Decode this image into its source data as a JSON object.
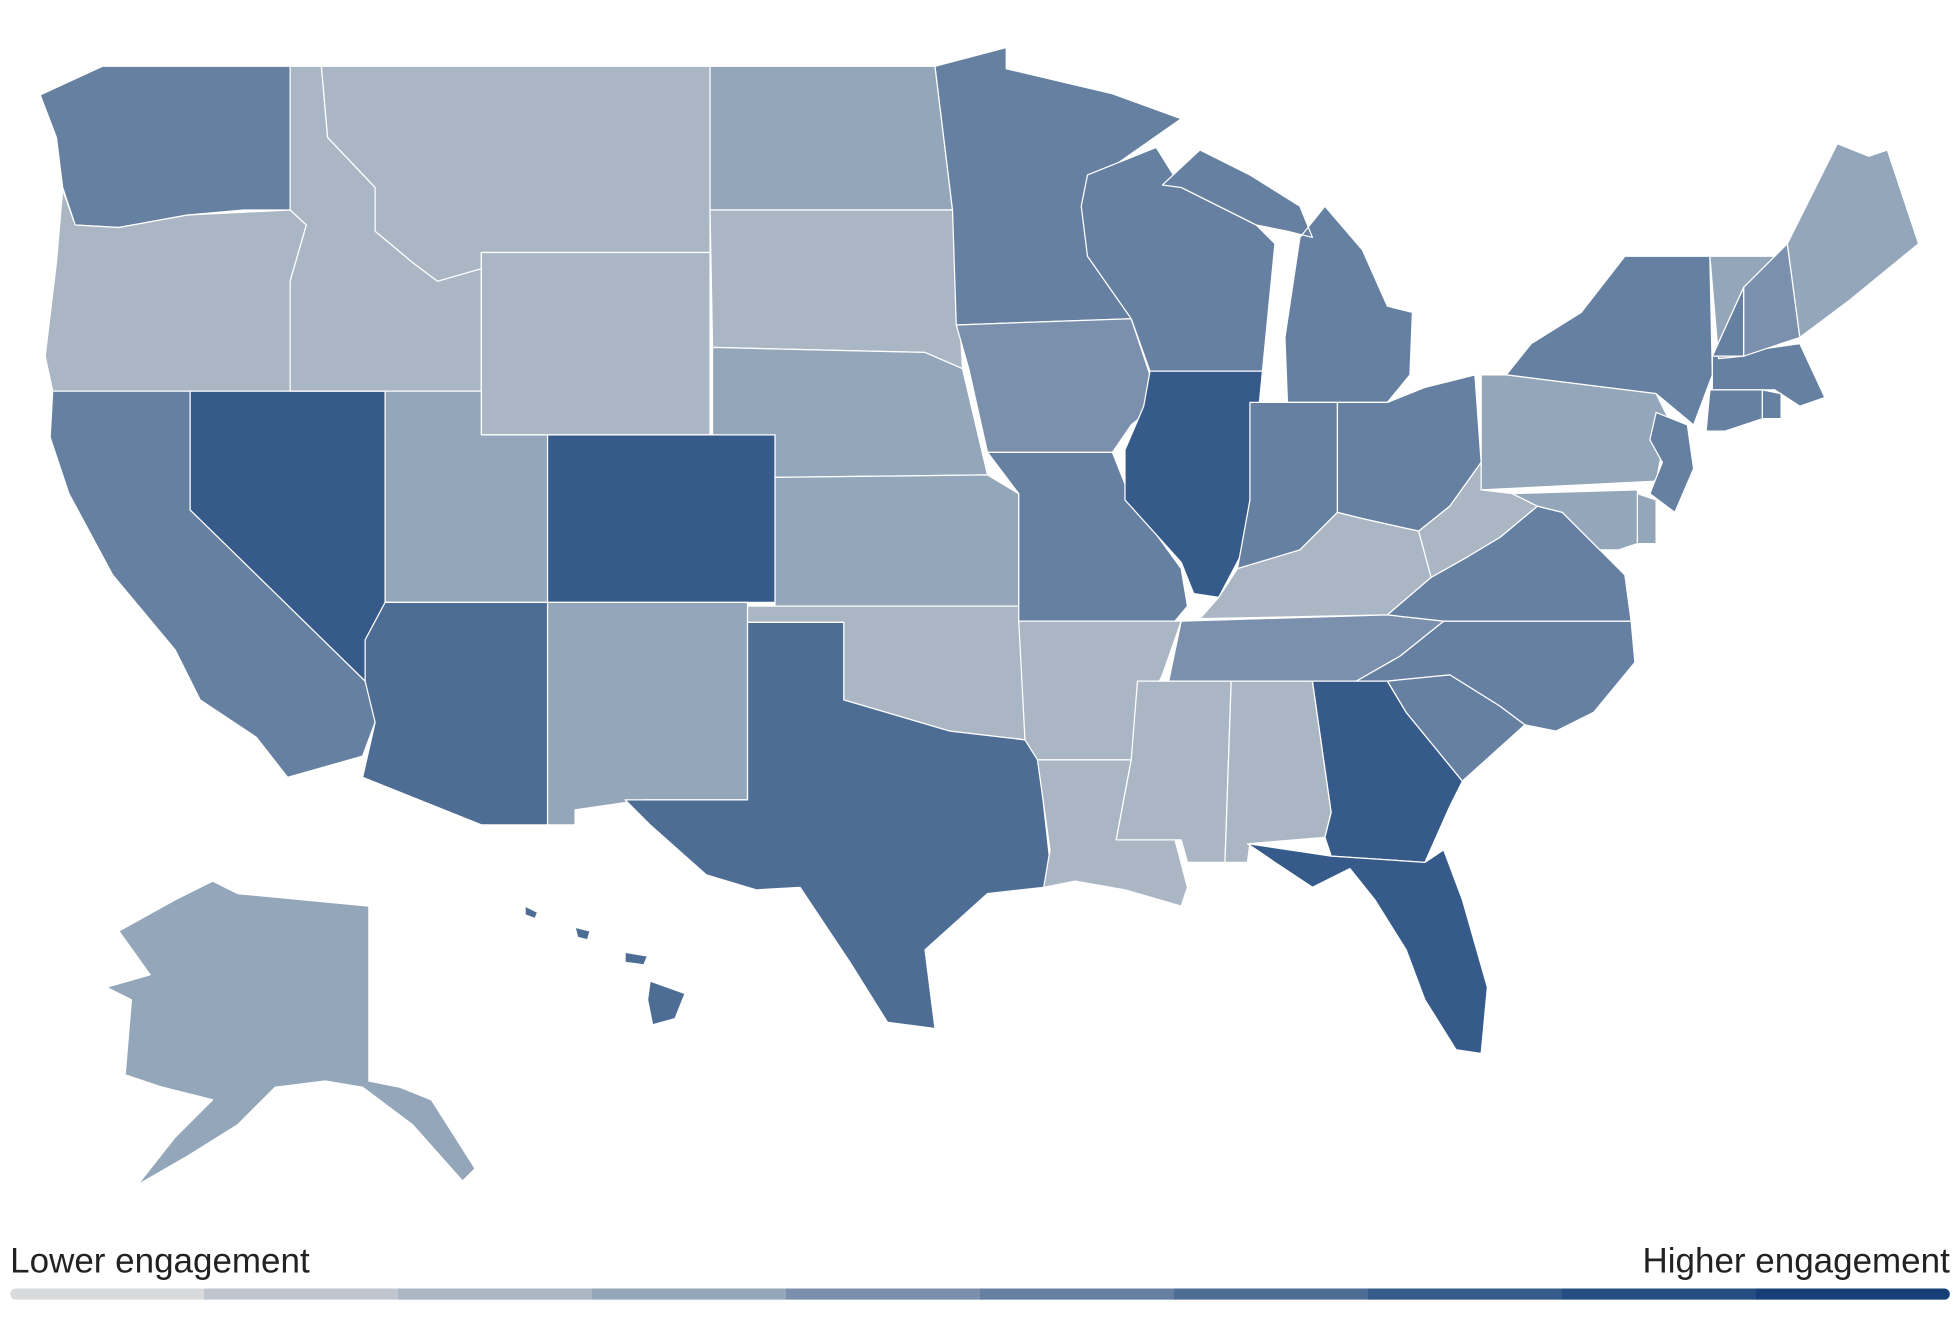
{
  "map": {
    "legend": {
      "low_label": "Lower engagement",
      "high_label": "Higher engagement",
      "colors": [
        "#d9dadc",
        "#bfc6cf",
        "#aab6c4",
        "#94a6ba",
        "#7b90ad",
        "#6580a1",
        "#4e6d95",
        "#365b8a",
        "#264d82",
        "#163f78"
      ]
    },
    "regions": [
      6,
      3,
      6,
      8,
      3,
      3,
      3,
      4,
      8,
      7,
      4,
      4,
      3,
      4,
      4,
      3,
      7,
      6,
      5,
      6,
      3,
      3,
      6,
      8,
      6,
      6,
      6,
      6,
      3,
      5,
      3,
      3,
      8,
      8,
      6,
      6,
      6,
      3,
      4,
      6,
      6,
      4,
      4,
      4,
      5,
      4,
      6,
      6,
      6,
      4,
      7
    ]
  }
}
